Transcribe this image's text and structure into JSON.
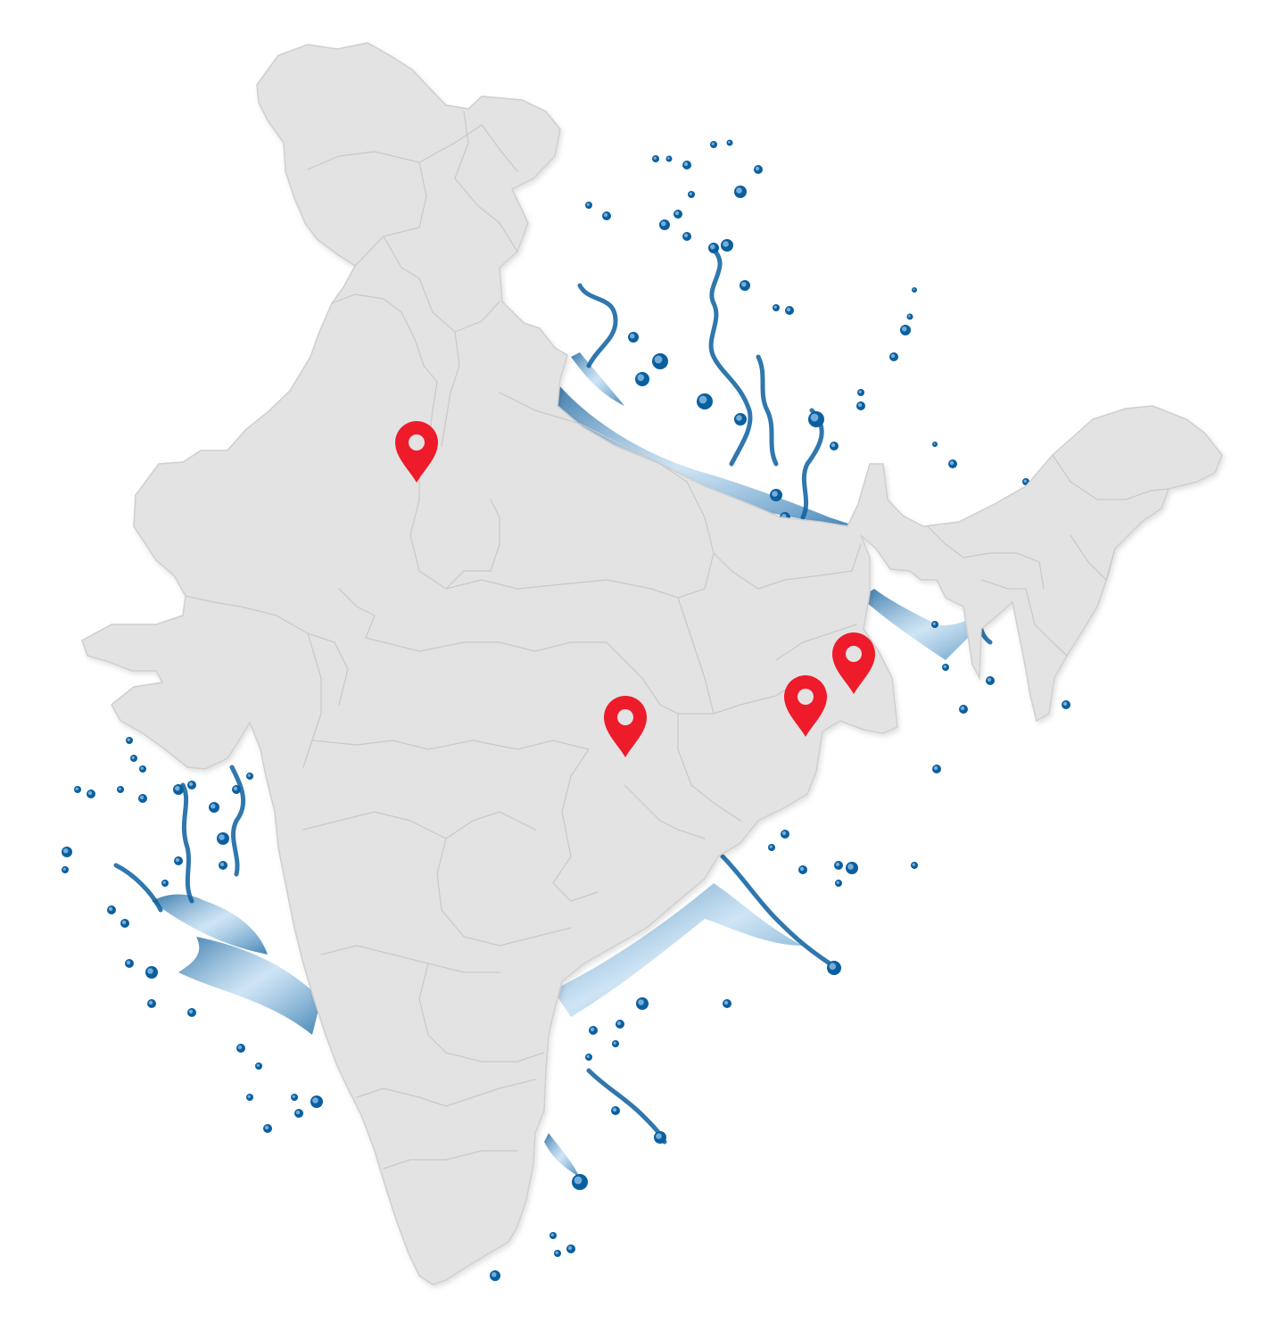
{
  "map": {
    "country": "India",
    "land_color": "#e3e3e3",
    "border_color": "#c9c9c9",
    "water_color": "#0a5f9f",
    "water_highlight": "#7fb6df",
    "marker_color": "#ee1b2b",
    "marker_icon": "map-pin-icon",
    "marker_count": 4
  }
}
